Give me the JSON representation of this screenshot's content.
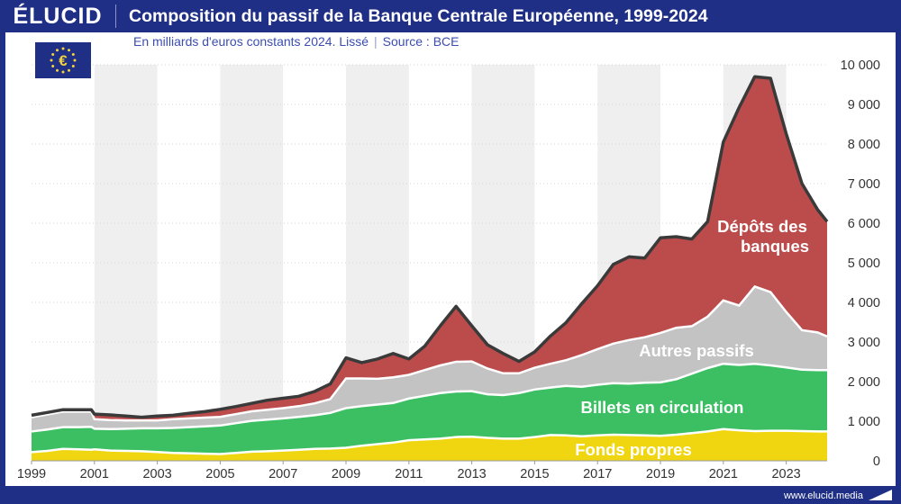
{
  "brand": {
    "logo": "ÉLUCID",
    "site": "www.elucid.media"
  },
  "chart_data": {
    "type": "area",
    "stacked": true,
    "title": "Composition du passif de la Banque Centrale Européenne, 1999-2024",
    "subtitle": "En milliards d'euros constants 2024. Lissé",
    "source": "Source : BCE",
    "xlabel": "",
    "ylabel": "",
    "xlim": [
      1999,
      2024.3
    ],
    "ylim": [
      0,
      10000
    ],
    "x_ticks": [
      1999,
      2001,
      2003,
      2005,
      2007,
      2009,
      2011,
      2013,
      2015,
      2017,
      2019,
      2021,
      2023
    ],
    "y_ticks": [
      0,
      1000,
      2000,
      3000,
      4000,
      5000,
      6000,
      7000,
      8000,
      9000,
      10000
    ],
    "y_tick_labels": [
      "0",
      "1 000",
      "2 000",
      "3 000",
      "4 000",
      "5 000",
      "6 000",
      "7 000",
      "8 000",
      "9 000",
      "10 000"
    ],
    "x": [
      1999,
      1999.5,
      2000,
      2000.5,
      2000.9,
      2001,
      2001.5,
      2002,
      2002.5,
      2003,
      2003.5,
      2004,
      2004.5,
      2005,
      2005.5,
      2006,
      2006.5,
      2007,
      2007.5,
      2008,
      2008.5,
      2009,
      2009.5,
      2010,
      2010.5,
      2011,
      2011.5,
      2012,
      2012.5,
      2013,
      2013.5,
      2014,
      2014.5,
      2015,
      2015.5,
      2016,
      2016.5,
      2017,
      2017.5,
      2018,
      2018.5,
      2019,
      2019.5,
      2020,
      2020.5,
      2021,
      2021.5,
      2022,
      2022.5,
      2023,
      2023.5,
      2024,
      2024.3
    ],
    "series": [
      {
        "name": "Fonds propres",
        "color": "#f0d611",
        "values": [
          220,
          250,
          300,
          290,
          280,
          290,
          260,
          250,
          240,
          220,
          200,
          190,
          180,
          170,
          200,
          230,
          240,
          260,
          280,
          300,
          310,
          330,
          380,
          420,
          460,
          520,
          540,
          560,
          600,
          610,
          580,
          560,
          560,
          600,
          650,
          640,
          620,
          640,
          660,
          650,
          640,
          630,
          660,
          700,
          740,
          800,
          770,
          750,
          760,
          760,
          750,
          740,
          740
        ]
      },
      {
        "name": "Billets en circulation",
        "color": "#3cbf63",
        "values": [
          520,
          540,
          550,
          560,
          580,
          520,
          540,
          560,
          580,
          600,
          630,
          660,
          690,
          720,
          750,
          780,
          800,
          810,
          830,
          850,
          900,
          1000,
          1000,
          1000,
          1000,
          1050,
          1100,
          1150,
          1150,
          1150,
          1100,
          1100,
          1150,
          1200,
          1200,
          1250,
          1250,
          1280,
          1300,
          1300,
          1330,
          1350,
          1400,
          1500,
          1600,
          1650,
          1650,
          1700,
          1650,
          1600,
          1550,
          1550,
          1550
        ]
      },
      {
        "name": "Autres passifs",
        "color": "#c3c3c3",
        "values": [
          360,
          380,
          390,
          390,
          380,
          240,
          230,
          210,
          200,
          200,
          220,
          220,
          220,
          220,
          230,
          240,
          250,
          260,
          270,
          300,
          350,
          750,
          700,
          650,
          650,
          600,
          650,
          700,
          750,
          750,
          650,
          550,
          500,
          550,
          600,
          650,
          800,
          900,
          1000,
          1100,
          1150,
          1250,
          1300,
          1200,
          1300,
          1600,
          1500,
          1950,
          1850,
          1400,
          1000,
          950,
          850
        ]
      },
      {
        "name": "Dépôts des banques",
        "color": "#bc4c4c",
        "values": [
          50,
          50,
          50,
          50,
          50,
          130,
          130,
          110,
          80,
          110,
          100,
          130,
          150,
          190,
          190,
          200,
          240,
          250,
          250,
          300,
          380,
          520,
          400,
          500,
          600,
          400,
          600,
          1000,
          1400,
          900,
          600,
          500,
          300,
          400,
          700,
          950,
          1300,
          1600,
          2000,
          2100,
          2000,
          2400,
          2300,
          2200,
          2400,
          4000,
          5000,
          5300,
          5400,
          4500,
          3700,
          3100,
          2900
        ]
      }
    ],
    "labels": [
      "Dépôts des",
      "banques",
      "Autres passifs",
      "Billets en circulation",
      "Fonds propres"
    ]
  }
}
